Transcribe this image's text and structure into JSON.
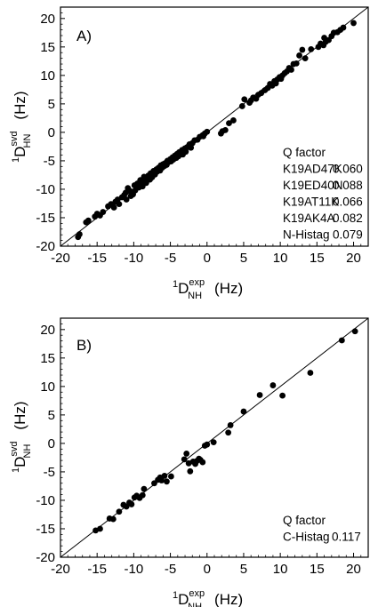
{
  "chart_data": [
    {
      "type": "scatter",
      "panel_label": "A)",
      "xlabel": {
        "pre": "1",
        "main": "D",
        "sup": "exp",
        "sub": "NH",
        "unit": "(Hz)"
      },
      "ylabel": {
        "pre": "1",
        "main": "D",
        "sup": "svd",
        "sub": "HN",
        "unit": "(Hz)"
      },
      "xlim": [
        -20,
        22
      ],
      "ylim": [
        -20,
        22
      ],
      "xticks": [
        -20,
        -15,
        -10,
        -5,
        0,
        5,
        10,
        15,
        20
      ],
      "yticks": [
        -20,
        -15,
        -10,
        -5,
        0,
        5,
        10,
        15,
        20
      ],
      "diagonal": [
        [
          -20,
          -20
        ],
        [
          22,
          22
        ]
      ],
      "legend_title": "Q factor",
      "q_factors": [
        {
          "label": "K19AD47K",
          "value": "0.060"
        },
        {
          "label": "K19ED40N",
          "value": "0.088"
        },
        {
          "label": "K19AT11K",
          "value": "0.066"
        },
        {
          "label": "K19AK4A",
          "value": "0.082"
        },
        {
          "label": "N-Histag",
          "value": "0.079"
        }
      ],
      "points": [
        [
          -17.6,
          -18.4
        ],
        [
          -17.4,
          -17.9
        ],
        [
          -16.5,
          -15.8
        ],
        [
          -16.2,
          -15.5
        ],
        [
          -15.3,
          -14.8
        ],
        [
          -15.0,
          -14.3
        ],
        [
          -14.6,
          -14.6
        ],
        [
          -14.2,
          -14.0
        ],
        [
          -13.5,
          -13.0
        ],
        [
          -13.1,
          -12.6
        ],
        [
          -12.7,
          -13.2
        ],
        [
          -12.5,
          -12.2
        ],
        [
          -12.2,
          -11.8
        ],
        [
          -12.0,
          -12.6
        ],
        [
          -11.6,
          -11.4
        ],
        [
          -11.3,
          -11.0
        ],
        [
          -11.1,
          -10.6
        ],
        [
          -11.0,
          -11.8
        ],
        [
          -10.8,
          -9.8
        ],
        [
          -10.5,
          -10.3
        ],
        [
          -10.4,
          -11.2
        ],
        [
          -10.1,
          -10.9
        ],
        [
          -9.9,
          -9.3
        ],
        [
          -9.8,
          -10.2
        ],
        [
          -9.5,
          -9.0
        ],
        [
          -9.3,
          -9.7
        ],
        [
          -9.1,
          -8.4
        ],
        [
          -9.0,
          -8.9
        ],
        [
          -8.8,
          -9.5
        ],
        [
          -8.6,
          -7.8
        ],
        [
          -8.5,
          -8.3
        ],
        [
          -8.3,
          -8.9
        ],
        [
          -8.0,
          -7.6
        ],
        [
          -7.8,
          -8.3
        ],
        [
          -7.7,
          -7.2
        ],
        [
          -7.5,
          -7.9
        ],
        [
          -7.3,
          -6.8
        ],
        [
          -7.1,
          -7.4
        ],
        [
          -6.9,
          -6.5
        ],
        [
          -6.8,
          -6.9
        ],
        [
          -6.6,
          -6.2
        ],
        [
          -6.4,
          -6.7
        ],
        [
          -6.3,
          -5.8
        ],
        [
          -6.1,
          -6.2
        ],
        [
          -6.0,
          -5.6
        ],
        [
          -5.8,
          -5.9
        ],
        [
          -5.7,
          -5.4
        ],
        [
          -5.5,
          -5.7
        ],
        [
          -5.4,
          -5.0
        ],
        [
          -5.2,
          -5.2
        ],
        [
          -5.0,
          -4.7
        ],
        [
          -4.9,
          -5.1
        ],
        [
          -4.7,
          -4.4
        ],
        [
          -4.6,
          -4.8
        ],
        [
          -4.4,
          -4.1
        ],
        [
          -4.2,
          -4.5
        ],
        [
          -4.1,
          -3.8
        ],
        [
          -3.9,
          -4.2
        ],
        [
          -3.8,
          -3.5
        ],
        [
          -3.6,
          -3.9
        ],
        [
          -3.4,
          -3.1
        ],
        [
          -3.2,
          -3.4
        ],
        [
          -3.0,
          -2.8
        ],
        [
          -2.7,
          -2.6
        ],
        [
          -2.4,
          -2.1
        ],
        [
          -2.0,
          -1.9
        ],
        [
          -1.7,
          -1.4
        ],
        [
          -1.3,
          -1.3
        ],
        [
          -1.0,
          -0.8
        ],
        [
          -0.6,
          -0.5
        ],
        [
          -0.3,
          -0.2
        ],
        [
          0.0,
          0.1
        ],
        [
          -3.3,
          -3.9
        ],
        [
          -2.9,
          -3.4
        ],
        [
          -2.2,
          -2.7
        ],
        [
          -0.5,
          -0.7
        ],
        [
          1.9,
          -0.2
        ],
        [
          2.1,
          0.2
        ],
        [
          2.5,
          0.4
        ],
        [
          3.0,
          1.6
        ],
        [
          3.6,
          2.1
        ],
        [
          4.8,
          4.6
        ],
        [
          5.1,
          5.8
        ],
        [
          5.8,
          5.2
        ],
        [
          6.0,
          5.6
        ],
        [
          6.3,
          6.1
        ],
        [
          6.7,
          5.9
        ],
        [
          7.0,
          6.6
        ],
        [
          7.4,
          6.9
        ],
        [
          7.9,
          7.4
        ],
        [
          8.3,
          7.8
        ],
        [
          8.6,
          8.5
        ],
        [
          8.9,
          8.2
        ],
        [
          9.2,
          9.0
        ],
        [
          9.4,
          8.6
        ],
        [
          9.6,
          9.3
        ],
        [
          9.9,
          9.7
        ],
        [
          10.1,
          9.4
        ],
        [
          10.3,
          10.0
        ],
        [
          10.6,
          10.4
        ],
        [
          10.9,
          10.7
        ],
        [
          11.2,
          11.3
        ],
        [
          11.5,
          11.0
        ],
        [
          11.8,
          12.0
        ],
        [
          12.2,
          12.1
        ],
        [
          12.6,
          13.5
        ],
        [
          13.0,
          14.5
        ],
        [
          13.4,
          13.0
        ],
        [
          14.2,
          14.6
        ],
        [
          15.2,
          15.0
        ],
        [
          15.5,
          15.6
        ],
        [
          16.0,
          16.6
        ],
        [
          15.9,
          15.3
        ],
        [
          16.2,
          15.9
        ],
        [
          16.6,
          16.2
        ],
        [
          17.0,
          16.9
        ],
        [
          17.3,
          17.5
        ],
        [
          17.8,
          17.6
        ],
        [
          18.2,
          18.0
        ],
        [
          18.6,
          18.4
        ],
        [
          20.0,
          19.2
        ]
      ]
    },
    {
      "type": "scatter",
      "panel_label": "B)",
      "xlabel": {
        "pre": "1",
        "main": "D",
        "sup": "exp",
        "sub": "NH",
        "unit": "(Hz)"
      },
      "ylabel": {
        "pre": "1",
        "main": "D",
        "sup": "svd",
        "sub": "NH",
        "unit": "(Hz)"
      },
      "xlim": [
        -20,
        22
      ],
      "ylim": [
        -20,
        22
      ],
      "xticks": [
        -20,
        -15,
        -10,
        -5,
        0,
        5,
        10,
        15,
        20
      ],
      "yticks": [
        -20,
        -15,
        -10,
        -5,
        0,
        5,
        10,
        15,
        20
      ],
      "diagonal": [
        [
          -20,
          -20
        ],
        [
          22,
          22
        ]
      ],
      "legend_title": "Q factor",
      "q_factors": [
        {
          "label": "C-Histag",
          "value": "0.117"
        }
      ],
      "points": [
        [
          -15.2,
          -15.3
        ],
        [
          -14.6,
          -15.0
        ],
        [
          -13.3,
          -13.2
        ],
        [
          -12.8,
          -13.3
        ],
        [
          -12.0,
          -12.0
        ],
        [
          -11.4,
          -10.8
        ],
        [
          -11.0,
          -11.1
        ],
        [
          -10.6,
          -10.4
        ],
        [
          -10.3,
          -10.7
        ],
        [
          -9.9,
          -9.5
        ],
        [
          -9.6,
          -9.2
        ],
        [
          -9.2,
          -9.6
        ],
        [
          -8.8,
          -9.1
        ],
        [
          -8.6,
          -8.0
        ],
        [
          -7.2,
          -7.0
        ],
        [
          -6.7,
          -6.4
        ],
        [
          -6.4,
          -6.0
        ],
        [
          -6.2,
          -6.5
        ],
        [
          -5.8,
          -5.7
        ],
        [
          -5.5,
          -6.7
        ],
        [
          -4.9,
          -5.8
        ],
        [
          -3.1,
          -2.8
        ],
        [
          -2.8,
          -1.8
        ],
        [
          -2.5,
          -3.5
        ],
        [
          -2.3,
          -4.9
        ],
        [
          -1.9,
          -3.2
        ],
        [
          -1.6,
          -3.6
        ],
        [
          -1.4,
          -3.1
        ],
        [
          -1.1,
          -2.7
        ],
        [
          -0.9,
          -2.9
        ],
        [
          -0.6,
          -3.3
        ],
        [
          -0.3,
          -0.4
        ],
        [
          0.0,
          -0.2
        ],
        [
          0.9,
          0.2
        ],
        [
          2.9,
          1.9
        ],
        [
          3.2,
          3.2
        ],
        [
          5.0,
          5.6
        ],
        [
          7.2,
          8.5
        ],
        [
          9.0,
          10.2
        ],
        [
          10.3,
          8.4
        ],
        [
          14.1,
          12.4
        ],
        [
          18.4,
          18.1
        ],
        [
          20.2,
          19.7
        ]
      ]
    }
  ]
}
